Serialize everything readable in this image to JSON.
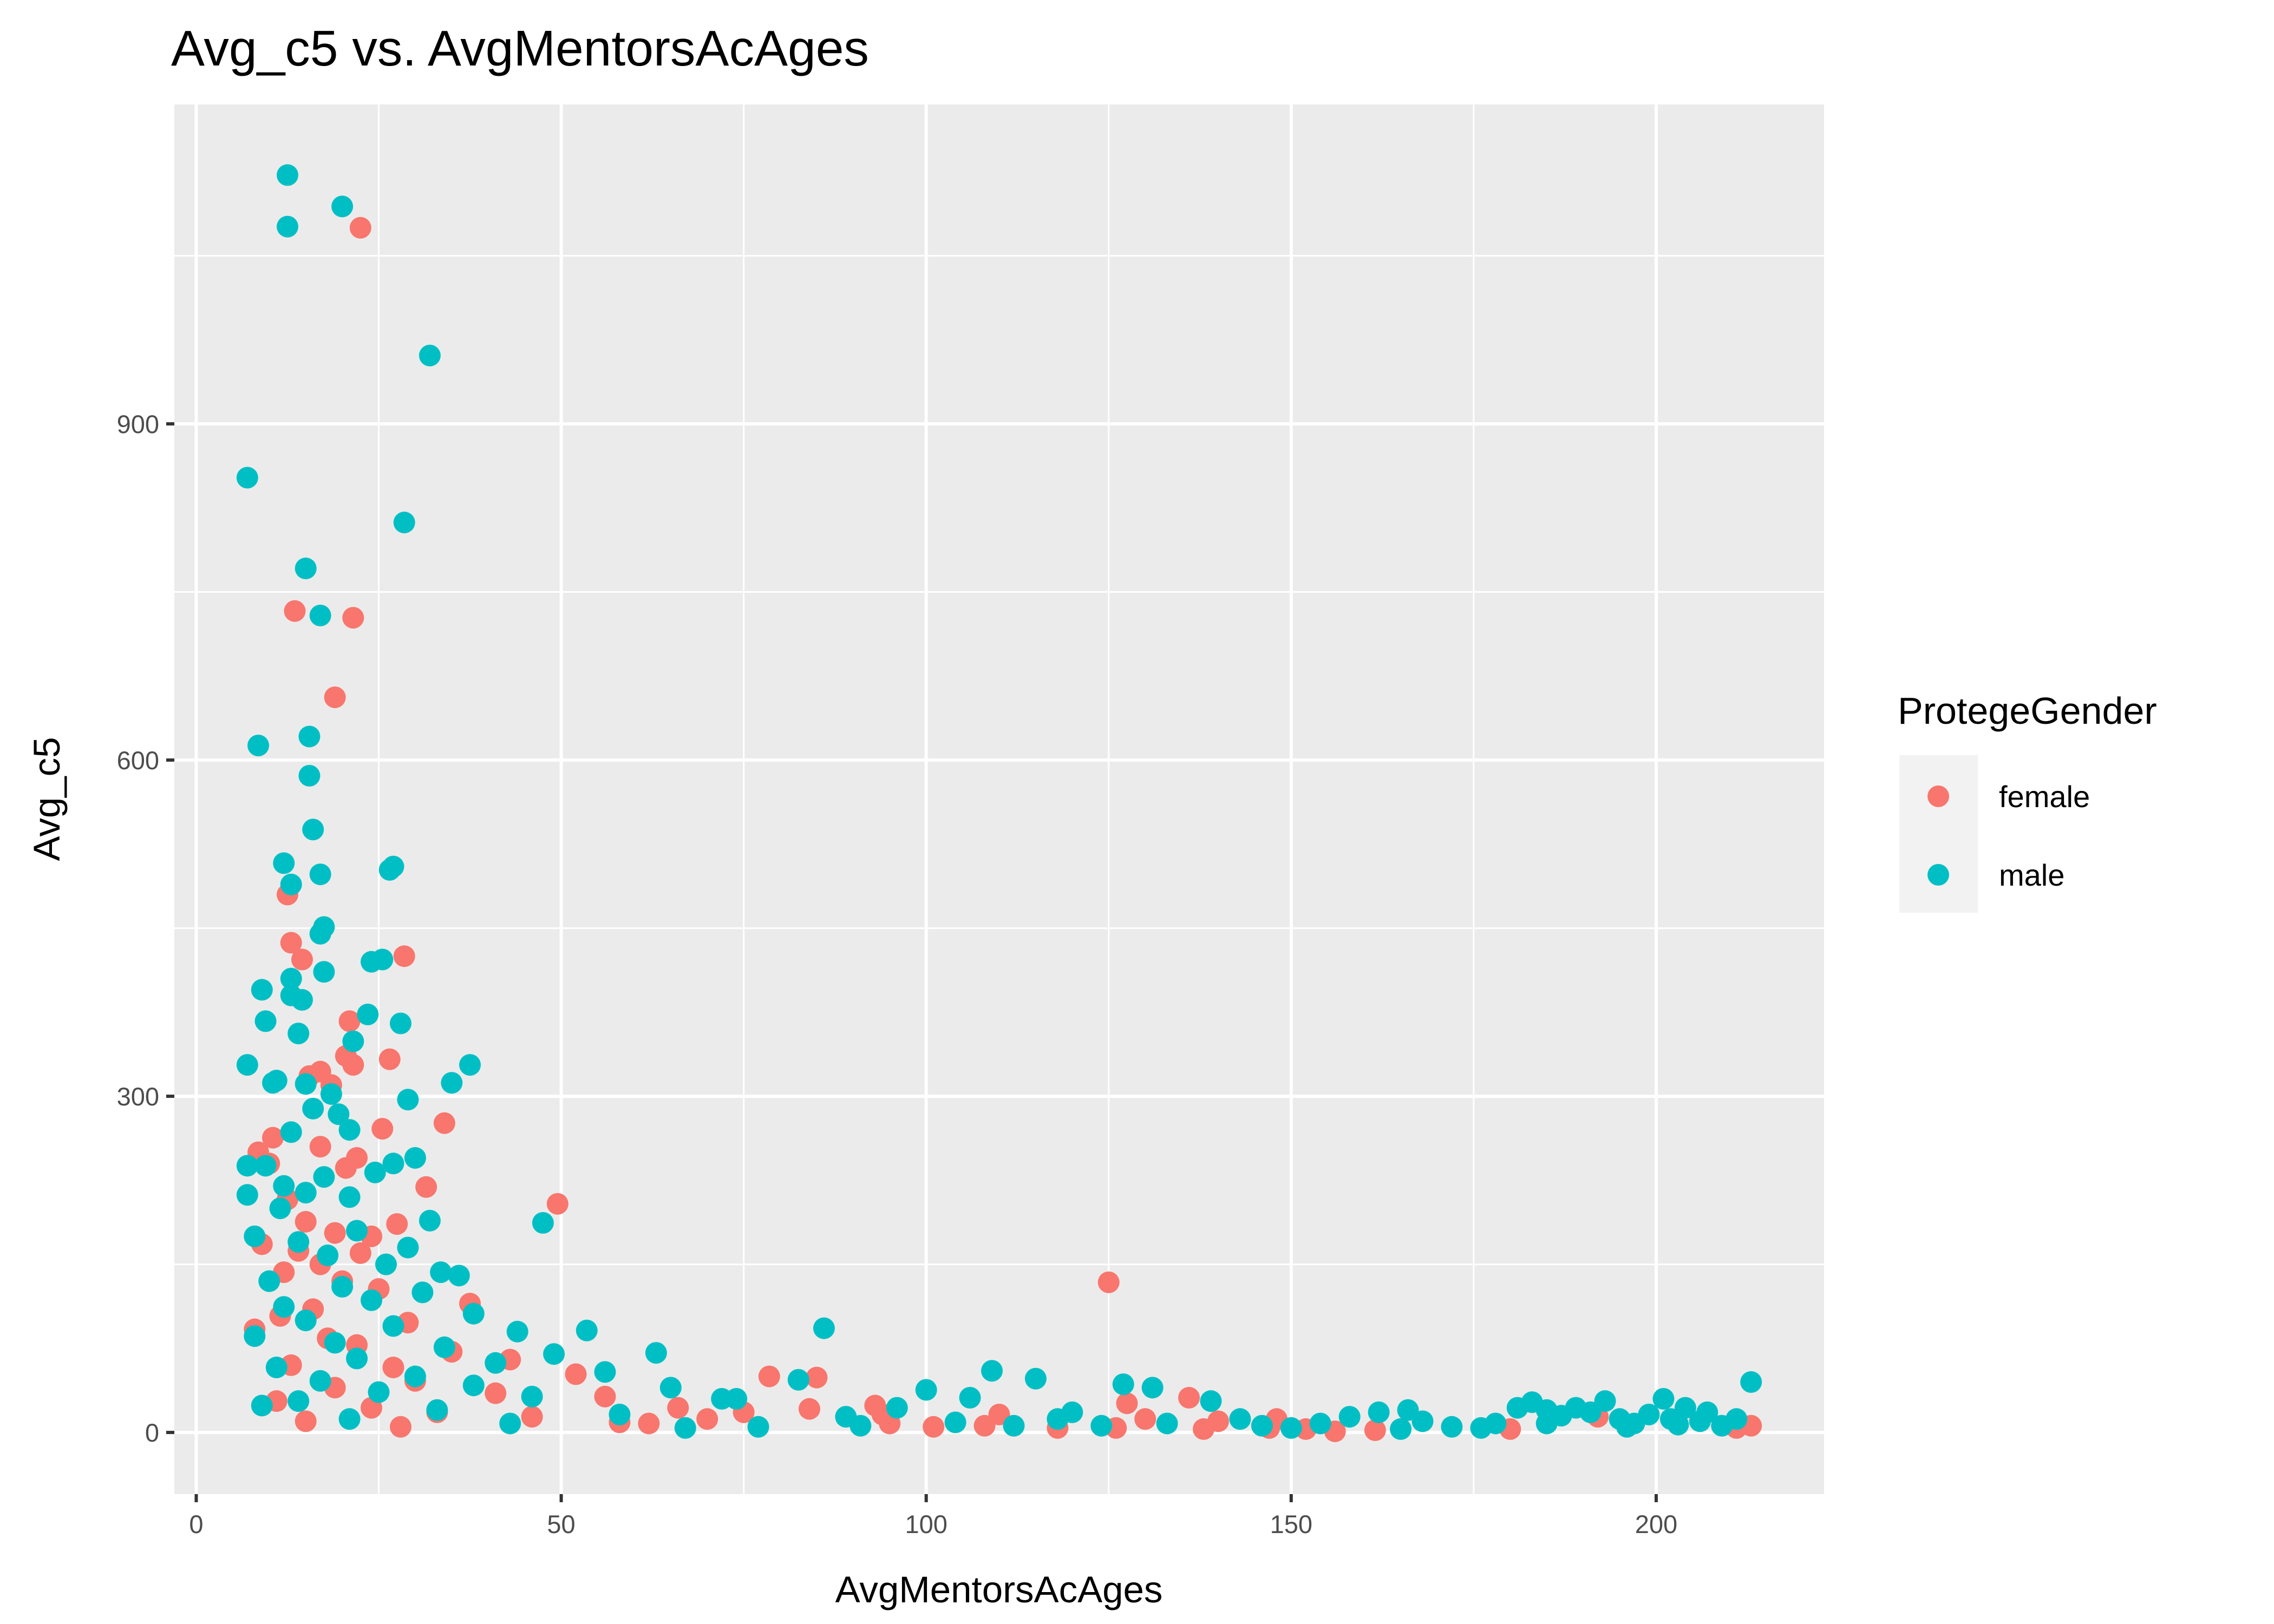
{
  "chart_data": {
    "type": "scatter",
    "title": "Avg_c5 vs. AvgMentorsAcAges",
    "xlabel": "AvgMentorsAcAges",
    "ylabel": "Avg_c5",
    "xlim": [
      -3,
      223
    ],
    "ylim": [
      -55,
      1185
    ],
    "x_ticks": [
      0,
      50,
      100,
      150,
      200
    ],
    "y_ticks": [
      0,
      300,
      600,
      900
    ],
    "x_tick_labels": [
      "0",
      "50",
      "100",
      "150",
      "200"
    ],
    "y_tick_labels": [
      "0",
      "300",
      "600",
      "900"
    ],
    "grid": true,
    "legend": {
      "title": "ProtegeGender",
      "position": "right",
      "entries": [
        {
          "label": "female",
          "color": "#F8766D"
        },
        {
          "label": "male",
          "color": "#00BFC4"
        }
      ]
    },
    "series": [
      {
        "name": "female",
        "color": "#F8766D",
        "points": [
          [
            22.5,
            1075
          ],
          [
            13.5,
            733
          ],
          [
            21.5,
            727
          ],
          [
            19,
            656
          ],
          [
            12.5,
            480
          ],
          [
            28.5,
            425
          ],
          [
            14.5,
            422
          ],
          [
            13,
            437
          ],
          [
            21,
            367
          ],
          [
            20.5,
            336
          ],
          [
            26.5,
            333
          ],
          [
            21.5,
            328
          ],
          [
            15.5,
            318
          ],
          [
            17,
            322
          ],
          [
            18.5,
            310
          ],
          [
            34,
            276
          ],
          [
            25.5,
            271
          ],
          [
            17,
            255
          ],
          [
            10.5,
            263
          ],
          [
            8.5,
            250
          ],
          [
            22,
            245
          ],
          [
            20.5,
            236
          ],
          [
            31.5,
            219
          ],
          [
            10,
            240
          ],
          [
            12.5,
            208
          ],
          [
            49.5,
            204
          ],
          [
            27.5,
            186
          ],
          [
            15,
            188
          ],
          [
            19,
            178
          ],
          [
            24,
            175
          ],
          [
            22.5,
            160
          ],
          [
            14,
            162
          ],
          [
            9,
            168
          ],
          [
            17,
            150
          ],
          [
            12,
            143
          ],
          [
            20,
            135
          ],
          [
            25,
            128
          ],
          [
            37.5,
            115
          ],
          [
            16,
            110
          ],
          [
            11.5,
            104
          ],
          [
            29,
            98
          ],
          [
            8,
            92
          ],
          [
            18,
            84
          ],
          [
            22,
            78
          ],
          [
            35,
            72
          ],
          [
            43,
            65
          ],
          [
            13,
            60
          ],
          [
            27,
            58
          ],
          [
            52,
            52
          ],
          [
            30,
            46
          ],
          [
            19,
            40
          ],
          [
            41,
            35
          ],
          [
            56,
            32
          ],
          [
            11,
            28
          ],
          [
            24,
            22
          ],
          [
            33,
            18
          ],
          [
            46,
            14
          ],
          [
            15,
            10
          ],
          [
            62,
            8
          ],
          [
            28,
            5
          ],
          [
            125,
            134
          ],
          [
            78.5,
            50
          ],
          [
            85,
            49
          ],
          [
            136,
            31
          ],
          [
            127.5,
            26
          ],
          [
            93,
            24
          ],
          [
            66,
            22
          ],
          [
            84,
            21
          ],
          [
            75,
            18
          ],
          [
            94,
            16
          ],
          [
            130,
            12
          ],
          [
            140,
            10
          ],
          [
            148,
            12
          ],
          [
            95,
            8
          ],
          [
            108,
            6
          ],
          [
            101,
            5
          ],
          [
            118,
            4
          ],
          [
            126,
            4
          ],
          [
            138,
            3
          ],
          [
            152,
            3
          ],
          [
            161.5,
            2
          ],
          [
            147,
            4
          ],
          [
            156,
            1
          ],
          [
            180,
            3
          ],
          [
            192,
            14
          ],
          [
            211,
            4
          ],
          [
            213,
            6
          ],
          [
            110,
            16
          ],
          [
            70,
            12
          ],
          [
            58,
            9
          ]
        ]
      },
      {
        "name": "male",
        "color": "#00BFC4",
        "points": [
          [
            12.5,
            1122
          ],
          [
            20,
            1094
          ],
          [
            12.5,
            1076
          ],
          [
            32,
            961
          ],
          [
            7,
            852
          ],
          [
            28.5,
            812
          ],
          [
            15,
            771
          ],
          [
            17,
            729
          ],
          [
            15.5,
            621
          ],
          [
            8.5,
            613
          ],
          [
            15.5,
            586
          ],
          [
            16,
            538
          ],
          [
            12,
            508
          ],
          [
            17,
            498
          ],
          [
            27,
            505
          ],
          [
            26.5,
            502
          ],
          [
            13,
            489
          ],
          [
            17.5,
            451
          ],
          [
            17,
            445
          ],
          [
            25.5,
            422
          ],
          [
            24,
            420
          ],
          [
            17.5,
            411
          ],
          [
            13,
            405
          ],
          [
            9,
            395
          ],
          [
            13,
            390
          ],
          [
            14.5,
            386
          ],
          [
            23.5,
            373
          ],
          [
            28,
            365
          ],
          [
            9.5,
            367
          ],
          [
            14,
            356
          ],
          [
            21.5,
            349
          ],
          [
            37.5,
            328
          ],
          [
            7,
            328
          ],
          [
            11,
            314
          ],
          [
            10.5,
            312
          ],
          [
            35,
            312
          ],
          [
            15,
            311
          ],
          [
            18.5,
            302
          ],
          [
            29,
            297
          ],
          [
            16,
            289
          ],
          [
            19.5,
            284
          ],
          [
            21,
            270
          ],
          [
            13,
            268
          ],
          [
            30,
            245
          ],
          [
            27,
            240
          ],
          [
            9.5,
            238
          ],
          [
            7,
            238
          ],
          [
            24.5,
            232
          ],
          [
            17.5,
            228
          ],
          [
            12,
            220
          ],
          [
            15,
            214
          ],
          [
            7,
            212
          ],
          [
            21,
            210
          ],
          [
            11.5,
            200
          ],
          [
            47.5,
            187
          ],
          [
            32,
            189
          ],
          [
            22,
            180
          ],
          [
            8,
            175
          ],
          [
            14,
            170
          ],
          [
            29,
            165
          ],
          [
            18,
            158
          ],
          [
            26,
            150
          ],
          [
            33.5,
            143
          ],
          [
            36,
            140
          ],
          [
            10,
            135
          ],
          [
            20,
            130
          ],
          [
            31,
            125
          ],
          [
            24,
            118
          ],
          [
            12,
            112
          ],
          [
            38,
            106
          ],
          [
            15,
            100
          ],
          [
            27,
            95
          ],
          [
            44,
            90
          ],
          [
            53.5,
            91
          ],
          [
            8,
            86
          ],
          [
            19,
            80
          ],
          [
            34,
            76
          ],
          [
            49,
            70
          ],
          [
            22,
            66
          ],
          [
            41,
            62
          ],
          [
            63,
            71
          ],
          [
            11,
            58
          ],
          [
            56,
            54
          ],
          [
            30,
            50
          ],
          [
            17,
            46
          ],
          [
            38,
            42
          ],
          [
            65,
            40
          ],
          [
            25,
            36
          ],
          [
            46,
            32
          ],
          [
            14,
            28
          ],
          [
            72,
            30
          ],
          [
            9,
            24
          ],
          [
            33,
            20
          ],
          [
            58,
            16
          ],
          [
            21,
            12
          ],
          [
            43,
            8
          ],
          [
            86,
            93
          ],
          [
            109,
            55
          ],
          [
            115,
            48
          ],
          [
            131,
            40
          ],
          [
            127,
            43
          ],
          [
            100,
            38
          ],
          [
            82.5,
            47
          ],
          [
            74,
            30
          ],
          [
            96,
            22
          ],
          [
            106,
            31
          ],
          [
            89,
            14
          ],
          [
            120,
            18
          ],
          [
            139,
            28
          ],
          [
            143,
            12
          ],
          [
            133,
            8
          ],
          [
            124,
            6
          ],
          [
            112,
            6
          ],
          [
            104,
            9
          ],
          [
            91,
            6
          ],
          [
            77,
            5
          ],
          [
            67,
            4
          ],
          [
            154,
            8
          ],
          [
            158,
            14
          ],
          [
            162,
            18
          ],
          [
            166,
            20
          ],
          [
            168,
            10
          ],
          [
            172,
            5
          ],
          [
            176,
            4
          ],
          [
            178,
            8
          ],
          [
            181,
            22
          ],
          [
            183,
            27
          ],
          [
            185,
            20
          ],
          [
            187,
            15
          ],
          [
            189,
            22
          ],
          [
            191,
            18
          ],
          [
            193,
            28
          ],
          [
            195,
            12
          ],
          [
            197,
            8
          ],
          [
            199,
            16
          ],
          [
            201,
            30
          ],
          [
            202,
            12
          ],
          [
            204,
            22
          ],
          [
            206,
            10
          ],
          [
            207,
            18
          ],
          [
            209,
            6
          ],
          [
            211,
            12
          ],
          [
            213,
            45
          ],
          [
            185,
            8
          ],
          [
            196,
            5
          ],
          [
            203,
            7
          ],
          [
            165,
            3
          ],
          [
            150,
            4
          ],
          [
            146,
            6
          ],
          [
            118,
            12
          ]
        ]
      }
    ]
  }
}
